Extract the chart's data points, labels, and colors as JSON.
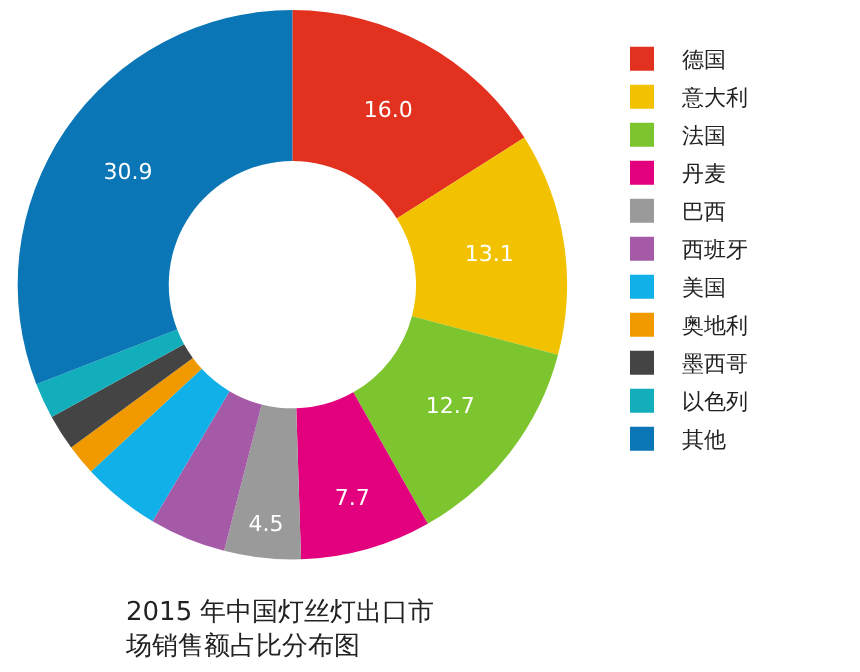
{
  "chart_data": {
    "type": "donut",
    "title": "2015 年中国灯丝灯出口市场销售额占比分布图",
    "categories": [
      "德国",
      "意大利",
      "法国",
      "丹麦",
      "巴西",
      "西班牙",
      "美国",
      "奥地利",
      "墨西哥",
      "以色列",
      "其他"
    ],
    "values": [
      16.0,
      13.1,
      12.7,
      7.7,
      4.5,
      4.5,
      4.6,
      1.8,
      2.1,
      2.1,
      30.9
    ],
    "value_labels": [
      "16.0",
      "13.1",
      "12.7",
      "7.7",
      "4.5",
      null,
      null,
      null,
      null,
      null,
      "30.9"
    ],
    "colors": [
      "#e2321f",
      "#f2c200",
      "#7dc52f",
      "#e2007f",
      "#9a9a9a",
      "#a45aa6",
      "#12b0e8",
      "#f09a00",
      "#444444",
      "#12aebc",
      "#0a76b6"
    ],
    "legend": "right"
  }
}
